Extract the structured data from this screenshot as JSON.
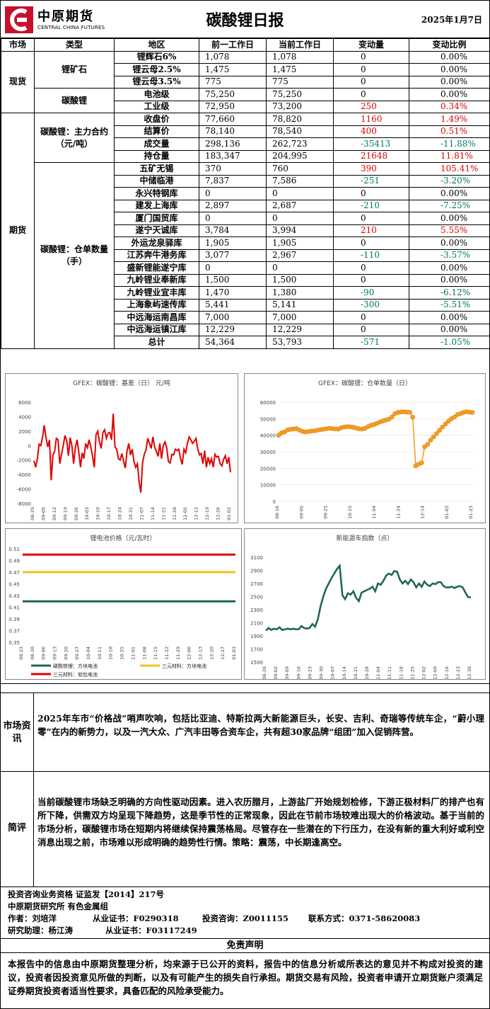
{
  "header": {
    "logo_cn": "中原期货",
    "logo_en": "CENTRAL CHINA FUTURES",
    "title": "碳酸锂日报",
    "date": "2025年1月7日"
  },
  "table": {
    "headers": [
      "市场",
      "类型",
      "地区",
      "前一工作日",
      "当前工作日",
      "变动量",
      "变动比例"
    ],
    "markets": {
      "spot": "现货",
      "futures": "期货"
    },
    "groups": {
      "ore": "锂矿石",
      "carbonate": "碳酸锂",
      "main": "碳酸锂：主力合约（元/吨）",
      "warrant": "碳酸锂：仓单数量（手）"
    },
    "spot_ore": [
      {
        "name": "锂辉石6%",
        "prev": "1,078",
        "cur": "1,078",
        "chg": "0",
        "pct": "0.00%",
        "dir": ""
      },
      {
        "name": "锂云母2.5%",
        "prev": "1,475",
        "cur": "1,475",
        "chg": "0",
        "pct": "0.00%",
        "dir": ""
      },
      {
        "name": "锂云母3.5%",
        "prev": "775",
        "cur": "775",
        "chg": "0",
        "pct": "0.00%",
        "dir": ""
      }
    ],
    "spot_carbonate": [
      {
        "name": "电池级",
        "prev": "75,250",
        "cur": "75,250",
        "chg": "0",
        "pct": "0.00%",
        "dir": ""
      },
      {
        "name": "工业级",
        "prev": "72,950",
        "cur": "73,200",
        "chg": "250",
        "pct": "0.34%",
        "dir": "up"
      }
    ],
    "futures_main": [
      {
        "name": "收盘价",
        "prev": "77,660",
        "cur": "78,820",
        "chg": "1160",
        "pct": "1.49%",
        "dir": "up"
      },
      {
        "name": "结算价",
        "prev": "78,140",
        "cur": "78,540",
        "chg": "400",
        "pct": "0.51%",
        "dir": "up"
      },
      {
        "name": "成交量",
        "prev": "298,136",
        "cur": "262,723",
        "chg": "-35413",
        "pct": "-11.88%",
        "dir": "dn"
      },
      {
        "name": "持仓量",
        "prev": "183,347",
        "cur": "204,995",
        "chg": "21648",
        "pct": "11.81%",
        "dir": "up"
      }
    ],
    "futures_warrant": [
      {
        "name": "五矿无锡",
        "prev": "370",
        "cur": "760",
        "chg": "390",
        "pct": "105.41%",
        "dir": "up"
      },
      {
        "name": "中储临港",
        "prev": "7,837",
        "cur": "7,586",
        "chg": "-251",
        "pct": "-3.20%",
        "dir": "dn"
      },
      {
        "name": "永兴特钢库",
        "prev": "0",
        "cur": "0",
        "chg": "0",
        "pct": "0.00%",
        "dir": ""
      },
      {
        "name": "建发上海库",
        "prev": "2,897",
        "cur": "2,687",
        "chg": "-210",
        "pct": "-7.25%",
        "dir": "dn"
      },
      {
        "name": "厦门国贸库",
        "prev": "0",
        "cur": "0",
        "chg": "0",
        "pct": "0.00%",
        "dir": ""
      },
      {
        "name": "遂宁天诚库",
        "prev": "3,784",
        "cur": "3,994",
        "chg": "210",
        "pct": "5.55%",
        "dir": "up"
      },
      {
        "name": "外运龙泉驿库",
        "prev": "1,905",
        "cur": "1,905",
        "chg": "0",
        "pct": "0.00%",
        "dir": ""
      },
      {
        "name": "江苏奔牛港务库",
        "prev": "3,077",
        "cur": "2,967",
        "chg": "-110",
        "pct": "-3.57%",
        "dir": "dn"
      },
      {
        "name": "盛新锂能遂宁库",
        "prev": "0",
        "cur": "0",
        "chg": "0",
        "pct": "0.00%",
        "dir": ""
      },
      {
        "name": "九岭锂业奉新库",
        "prev": "1,500",
        "cur": "1,500",
        "chg": "0",
        "pct": "0.00%",
        "dir": ""
      },
      {
        "name": "九岭锂业宜丰库",
        "prev": "1,470",
        "cur": "1,380",
        "chg": "-90",
        "pct": "-6.12%",
        "dir": "dn"
      },
      {
        "name": "上海象屿速传库",
        "prev": "5,441",
        "cur": "5,141",
        "chg": "-300",
        "pct": "-5.51%",
        "dir": "dn"
      },
      {
        "name": "中远海运南昌库",
        "prev": "7,000",
        "cur": "7,000",
        "chg": "0",
        "pct": "0.00%",
        "dir": ""
      },
      {
        "name": "中远海运镇江库",
        "prev": "12,229",
        "cur": "12,229",
        "chg": "0",
        "pct": "0.00%",
        "dir": ""
      },
      {
        "name": "总计",
        "prev": "54,364",
        "cur": "53,793",
        "chg": "-571",
        "pct": "-1.05%",
        "dir": "dn"
      }
    ]
  },
  "chart_data": [
    {
      "type": "line",
      "title": "GFEX：碳酸锂：基差（日） 元/吨",
      "x_ticks": [
        "08-29",
        "09-05",
        "09-12",
        "09-19",
        "09-26",
        "10-03",
        "10-10",
        "10-17",
        "10-24",
        "10-31",
        "11-07",
        "11-14",
        "11-21",
        "11-28",
        "12-05",
        "12-12",
        "12-19",
        "12-26",
        "01-02"
      ],
      "ylim": [
        -8000,
        6000
      ],
      "y_ticks": [
        6000,
        4000,
        2000,
        0,
        -2000,
        -4000,
        -6000,
        -8000
      ],
      "series": [
        {
          "color": "#e00000",
          "values": [
            -2100,
            -3000,
            -1800,
            200,
            0,
            1200,
            2800,
            1100,
            -200,
            800,
            -4800,
            -1300,
            -800,
            1000,
            800,
            -2500,
            -1200,
            0,
            1400,
            700,
            -1400,
            1100,
            0,
            -2500,
            -300,
            800,
            -900,
            -3000,
            -1000,
            -1800,
            300,
            -300,
            800,
            -200,
            -1500,
            -3000,
            1500,
            2000,
            500,
            -400,
            1800,
            2200,
            1000,
            1700,
            1800,
            800,
            4400,
            -200,
            -500,
            -1800,
            -2000,
            -1100,
            -2200,
            -3100,
            -700,
            300,
            -1300,
            -500,
            -2200,
            -3000,
            -2500,
            -5000,
            -6500,
            -2400,
            -1200,
            -600,
            1000,
            300,
            -400,
            1200,
            -200,
            -800,
            -1500,
            300,
            -1800,
            0,
            500,
            -300,
            -2200,
            -2400,
            -1200,
            -1300,
            -500,
            -700,
            -500,
            -1800,
            -2600,
            -500,
            -1000,
            300,
            1200,
            800,
            300,
            600,
            1000,
            -500,
            -1300,
            -1100,
            -2500,
            -700,
            -3000,
            -1600,
            -2500,
            -1800,
            -3000,
            -1200,
            -1600,
            -1500,
            -2500,
            -2800,
            -1900,
            -1400,
            -2500,
            -1600,
            -3700
          ]
        }
      ]
    },
    {
      "type": "line",
      "title": "GFEX：碳酸锂：仓单数量（日）",
      "x_ticks": [
        "08-16",
        "09-05",
        "09-25",
        "10-15",
        "11-04",
        "11-24",
        "12-14",
        "01-03",
        "01-23"
      ],
      "ylim": [
        0,
        60000
      ],
      "y_ticks": [
        60000,
        50000,
        40000,
        30000,
        20000,
        10000,
        0
      ],
      "series": [
        {
          "color": "#f4a020",
          "values": [
            40000,
            41500,
            42000,
            43200,
            43600,
            43800,
            44000,
            43100,
            42300,
            42000,
            42200,
            42500,
            42700,
            43000,
            43300,
            43600,
            43900,
            44200,
            44000,
            43800,
            43700,
            44500,
            45000,
            45200,
            45100,
            44800,
            44400,
            43900,
            43700,
            44100,
            45200,
            46000,
            46500,
            47200,
            48000,
            48600,
            49200,
            49700,
            51000,
            53000,
            53800,
            54100,
            54200,
            54000,
            53900,
            51000,
            21500,
            22500,
            23300,
            33000,
            34500,
            37000,
            39000,
            41000,
            43000,
            45000,
            46800,
            48500,
            50000,
            51000,
            52500,
            53000,
            53800,
            54200,
            54000,
            53800
          ]
        }
      ]
    },
    {
      "type": "line",
      "title": "锂电池价格（元/瓦时）",
      "x_ticks": [
        "08-23",
        "08-30",
        "09-06",
        "09-13",
        "09-20",
        "09-27",
        "10-04",
        "10-11",
        "10-18",
        "10-25",
        "11-01",
        "11-08",
        "11-15",
        "11-22",
        "11-29",
        "12-06",
        "12-13",
        "12-20",
        "12-27",
        "01-03"
      ],
      "ylim": [
        0.35,
        0.51
      ],
      "y_ticks": [
        0.51,
        0.49,
        0.47,
        0.45,
        0.43,
        0.41,
        0.39,
        0.37,
        0.35
      ],
      "series": [
        {
          "name": "磷酸铁锂：方块电池",
          "color": "#1e6b48",
          "values": [
            0.42,
            0.42
          ]
        },
        {
          "name": "三元材料：方块电池",
          "color": "#f2c01a",
          "values": [
            0.47,
            0.47
          ]
        },
        {
          "name": "三元材料：软包电池",
          "color": "#e00000",
          "values": [
            0.5,
            0.5
          ]
        }
      ]
    },
    {
      "type": "line",
      "title": "新能源车指数（点）",
      "x_ticks": [
        "08-26",
        "09-02",
        "09-09",
        "09-16",
        "09-23",
        "09-30",
        "10-07",
        "10-14",
        "10-21",
        "10-28",
        "11-04",
        "11-11",
        "11-18",
        "11-25",
        "12-02",
        "12-09",
        "12-16",
        "12-23",
        "12-30"
      ],
      "ylim": [
        1500,
        3100
      ],
      "y_ticks": [
        3100,
        2900,
        2700,
        2500,
        2300,
        2100,
        1900,
        1700,
        1500
      ],
      "series": [
        {
          "color": "#1e6b48",
          "values": [
            1980,
            2020,
            1990,
            2010,
            2000,
            2030,
            1990,
            2000,
            2010,
            2000,
            2010,
            2000,
            2000,
            2050,
            2020,
            2010,
            2020,
            2080,
            2040,
            2150,
            2350,
            2500,
            2620,
            2700,
            2780,
            2850,
            2920,
            2970,
            2520,
            2460,
            2550,
            2530,
            2580,
            2480,
            2430,
            2560,
            2580,
            2600,
            2620,
            2650,
            2580,
            2700,
            2680,
            2740,
            2820,
            2850,
            2830,
            2890,
            2880,
            2760,
            2700,
            2740,
            2690,
            2760,
            2720,
            2640,
            2700,
            2650,
            2730,
            2680,
            2660,
            2700,
            2690,
            2720,
            2720,
            2660,
            2640,
            2640,
            2650,
            2630,
            2650,
            2660,
            2640,
            2560,
            2490,
            2490
          ]
        }
      ]
    }
  ],
  "news": {
    "label": "市场资讯",
    "text": "2025年车市“价格战”哨声吹响，包括比亚迪、特斯拉两大新能源巨头，长安、吉利、奇瑞等传统车企，“蔚小理零”在内的新势力，以及一汽大众、广汽丰田等合资车企，共有超30家品牌“组团”加入促销阵营。"
  },
  "review": {
    "label": "简评",
    "text": "当前碳酸锂市场缺乏明确的方向性驱动因素。进入农历腊月，上游盐厂开始规划检修，下游正极材料厂的排产也有所下降，供需双方均呈现下降趋势，这是季节性的正常现象，因此在节前市场较难出现大的价格波动。基于当前的市场分析，碳酸锂市场在短期内将继续保持震荡格局。尽管存在一些潜在的下行压力，在没有新的重大利好或利空消息出现之前，市场难以形成明确的趋势性行情。策略：震荡，中长期逢高空。"
  },
  "credits": {
    "line1": "投资咨询业务资格   证监发【2014】217号",
    "line2": "中原期货研究所   有色金属组",
    "author_label": "作者：刘培洋",
    "author_cert": "从业证书：F0290318",
    "author_consult": "投资咨询：Z0011155",
    "author_phone": "联系方式：0371-58620083",
    "assistant": "研究助理：杨江涛",
    "assistant_cert": "从业证书：F03117249"
  },
  "disclaimer": {
    "title": "免责声明",
    "text": "本报告中的信息由中原期货整理分析，均来源于已公开的资料，报告中的信息分析或所表达的意见并不构成对投资的建议，投资者因投资意见所做的判断，以及有可能产生的损失自行承担。期货交易有风险，投资者申请开立期货账户须满足证券期货投资者适当性要求，具备匹配的风险承受能力。"
  }
}
